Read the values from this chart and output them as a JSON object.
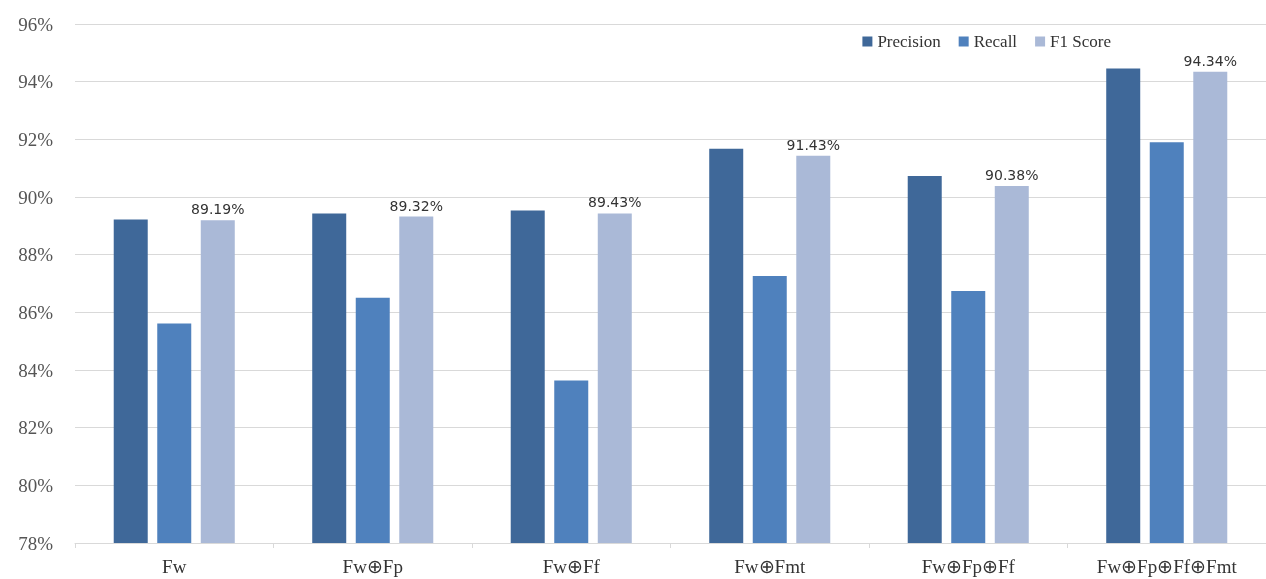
{
  "chart_data": {
    "type": "bar",
    "categories": [
      "Fw",
      "Fw⊕Fp",
      "Fw⊕Ff",
      "Fw⊕Fmt",
      "Fw⊕Fp⊕Ff",
      "Fw⊕Fp⊕Ff⊕Fmt"
    ],
    "series": [
      {
        "name": "Precision",
        "color": "#3f6899",
        "values": [
          89.22,
          89.43,
          89.53,
          91.67,
          90.73,
          94.46
        ]
      },
      {
        "name": "Recall",
        "color": "#4f81bd",
        "values": [
          85.61,
          86.51,
          83.64,
          87.26,
          86.74,
          91.9
        ]
      },
      {
        "name": "F1 Score",
        "color": "#aab9d7",
        "values": [
          89.19,
          89.32,
          89.43,
          91.43,
          90.38,
          94.34
        ],
        "value_labels": [
          "89.19%",
          "89.32%",
          "89.43%",
          "91.43%",
          "90.38%",
          "94.34%"
        ]
      }
    ],
    "ylim": [
      78,
      96
    ],
    "yticks": [
      {
        "value": 78,
        "label": "78%"
      },
      {
        "value": 80,
        "label": "80%"
      },
      {
        "value": 82,
        "label": "82%"
      },
      {
        "value": 84,
        "label": "84%"
      },
      {
        "value": 86,
        "label": "86%"
      },
      {
        "value": 88,
        "label": "88%"
      },
      {
        "value": 90,
        "label": "90%"
      },
      {
        "value": 92,
        "label": "92%"
      },
      {
        "value": 94,
        "label": "94%"
      },
      {
        "value": 96,
        "label": "96%"
      }
    ],
    "grid": "y",
    "legend": "top right"
  }
}
